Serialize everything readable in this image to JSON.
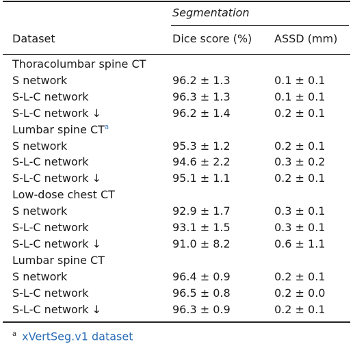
{
  "header": {
    "group_label": "Segmentation",
    "dataset_label": "Dataset",
    "dice_label": "Dice score (%)",
    "assd_label": "ASSD (mm)"
  },
  "groups": [
    {
      "title": "Thoracolumbar spine CT",
      "footnote_mark": "",
      "rows": [
        {
          "method": "S network",
          "dice": "96.2 ± 1.3",
          "assd": "0.1 ± 0.1"
        },
        {
          "method": "S-L-C network",
          "dice": "96.3 ± 1.3",
          "assd": "0.1 ± 0.1"
        },
        {
          "method": "S-L-C network ↓",
          "dice": "96.2 ± 1.4",
          "assd": "0.2 ± 0.1"
        }
      ]
    },
    {
      "title": "Lumbar spine CT",
      "footnote_mark": "a",
      "rows": [
        {
          "method": "S network",
          "dice": "95.3 ± 1.2",
          "assd": "0.2 ± 0.1"
        },
        {
          "method": "S-L-C network",
          "dice": "94.6 ± 2.2",
          "assd": "0.3 ± 0.2"
        },
        {
          "method": "S-L-C network ↓",
          "dice": "95.1 ± 1.1",
          "assd": "0.2 ± 0.1"
        }
      ]
    },
    {
      "title": "Low-dose chest CT",
      "footnote_mark": "",
      "rows": [
        {
          "method": "S network",
          "dice": "92.9 ± 1.7",
          "assd": "0.3 ± 0.1"
        },
        {
          "method": "S-L-C network",
          "dice": "93.1 ± 1.5",
          "assd": "0.3 ± 0.1"
        },
        {
          "method": "S-L-C network ↓",
          "dice": "91.0 ± 8.2",
          "assd": "0.6 ± 1.1"
        }
      ]
    },
    {
      "title": "Lumbar spine CT",
      "footnote_mark": "",
      "rows": [
        {
          "method": "S network",
          "dice": "96.4 ± 0.9",
          "assd": "0.2 ± 0.1"
        },
        {
          "method": "S-L-C network",
          "dice": "96.5 ± 0.8",
          "assd": "0.2 ± 0.0"
        },
        {
          "method": "S-L-C network ↓",
          "dice": "96.3 ± 0.9",
          "assd": "0.2 ± 0.1"
        }
      ]
    }
  ],
  "footnote": {
    "mark": "a",
    "text": "xVertSeg.v1 dataset"
  }
}
